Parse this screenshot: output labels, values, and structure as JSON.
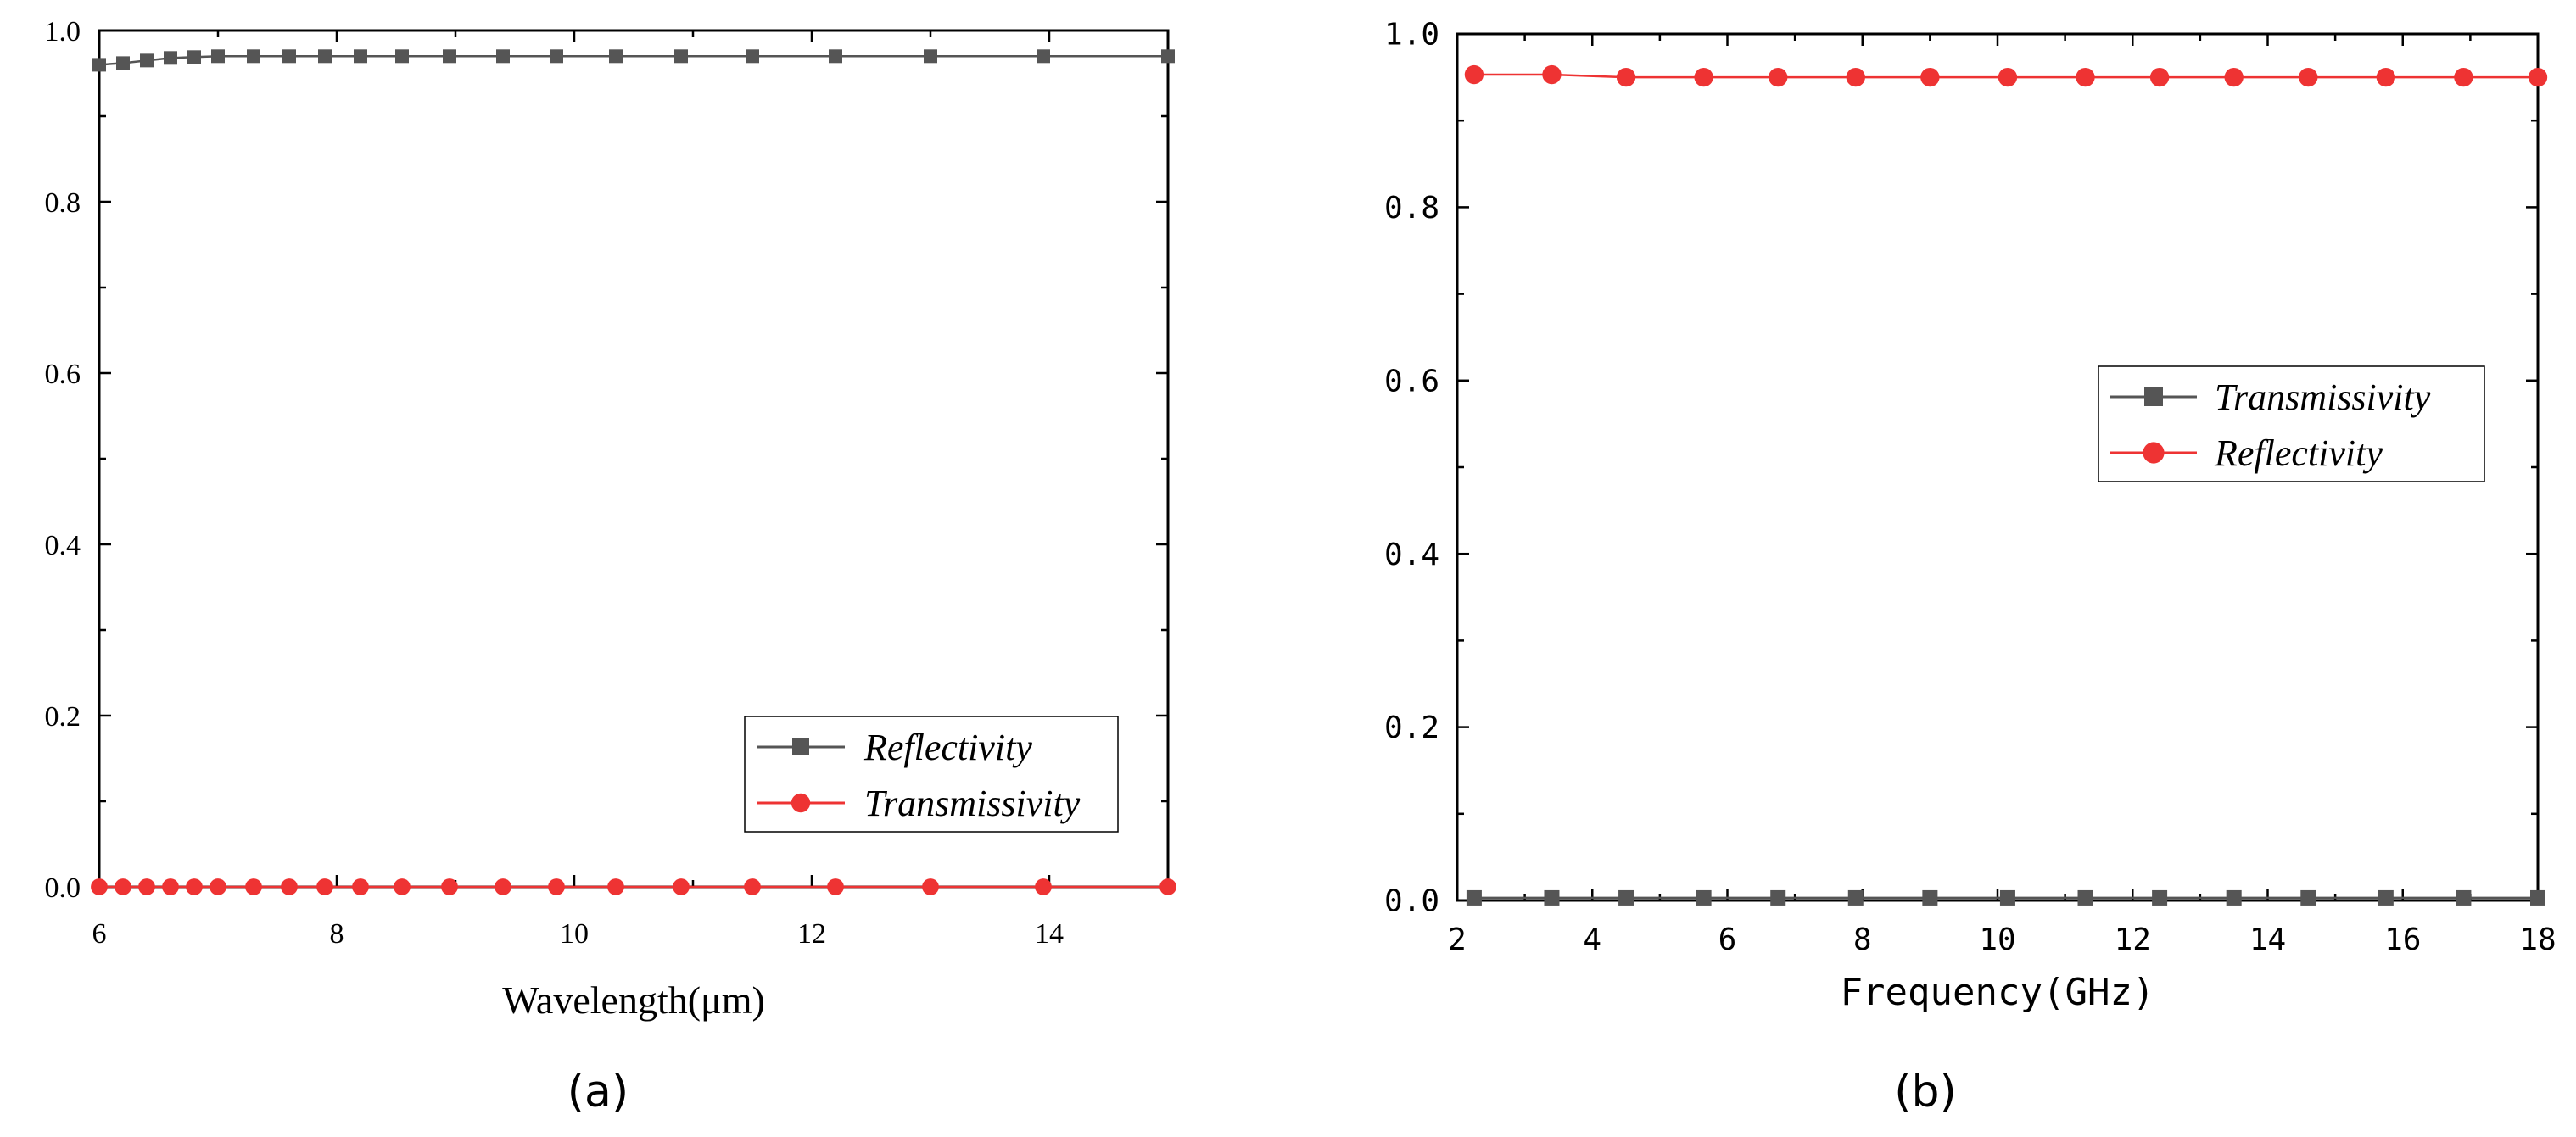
{
  "chart_data": [
    {
      "type": "line",
      "panel_label": "(a)",
      "xlabel": "Wavelength(μm)",
      "ylabel": "",
      "xlim": [
        6,
        15
      ],
      "ylim": [
        0,
        1.0
      ],
      "x_ticks": [
        6,
        8,
        10,
        12,
        14
      ],
      "y_ticks": [
        0.0,
        0.2,
        0.4,
        0.6,
        0.8,
        1.0
      ],
      "legend_position": "bottom-right",
      "grid": false,
      "series": [
        {
          "name": "Reflectivity",
          "color": "#555555",
          "marker": "square",
          "x": [
            6.0,
            6.2,
            6.4,
            6.6,
            6.8,
            7.0,
            7.3,
            7.6,
            7.9,
            8.2,
            8.55,
            8.95,
            9.4,
            9.85,
            10.35,
            10.9,
            11.5,
            12.2,
            13.0,
            13.95,
            15.0
          ],
          "values": [
            0.96,
            0.962,
            0.965,
            0.968,
            0.969,
            0.97,
            0.97,
            0.97,
            0.97,
            0.97,
            0.97,
            0.97,
            0.97,
            0.97,
            0.97,
            0.97,
            0.97,
            0.97,
            0.97,
            0.97,
            0.97
          ]
        },
        {
          "name": "Transmissivity",
          "color": "#ee3333",
          "marker": "circle",
          "x": [
            6.0,
            6.2,
            6.4,
            6.6,
            6.8,
            7.0,
            7.3,
            7.6,
            7.9,
            8.2,
            8.55,
            8.95,
            9.4,
            9.85,
            10.35,
            10.9,
            11.5,
            12.2,
            13.0,
            13.95,
            15.0
          ],
          "values": [
            0.0,
            0.0,
            0.0,
            0.0,
            0.0,
            0.0,
            0.0,
            0.0,
            0.0,
            0.0,
            0.0,
            0.0,
            0.0,
            0.0,
            0.0,
            0.0,
            0.0,
            0.0,
            0.0,
            0.0,
            0.0
          ]
        }
      ]
    },
    {
      "type": "line",
      "panel_label": "(b)",
      "xlabel": "Frequency(GHz)",
      "ylabel": "",
      "xlim": [
        2,
        18
      ],
      "ylim": [
        0,
        1.0
      ],
      "x_ticks": [
        2,
        4,
        6,
        8,
        10,
        12,
        14,
        16,
        18
      ],
      "y_ticks": [
        0.0,
        0.2,
        0.4,
        0.6,
        0.8,
        1.0
      ],
      "legend_position": "right",
      "grid": false,
      "series": [
        {
          "name": "Transmissivity",
          "color": "#555555",
          "marker": "square",
          "x": [
            2.25,
            3.4,
            4.5,
            5.65,
            6.75,
            7.9,
            9.0,
            10.15,
            11.3,
            12.4,
            13.5,
            14.6,
            15.75,
            16.9,
            18.0
          ],
          "values": [
            0.003,
            0.003,
            0.003,
            0.003,
            0.003,
            0.003,
            0.003,
            0.003,
            0.003,
            0.003,
            0.003,
            0.003,
            0.003,
            0.003,
            0.003
          ]
        },
        {
          "name": "Reflectivity",
          "color": "#ee3333",
          "marker": "circle",
          "x": [
            2.25,
            3.4,
            4.5,
            5.65,
            6.75,
            7.9,
            9.0,
            10.15,
            11.3,
            12.4,
            13.5,
            14.6,
            15.75,
            16.9,
            18.0
          ],
          "values": [
            0.953,
            0.953,
            0.95,
            0.95,
            0.95,
            0.95,
            0.95,
            0.95,
            0.95,
            0.95,
            0.95,
            0.95,
            0.95,
            0.95,
            0.95
          ]
        }
      ]
    }
  ]
}
